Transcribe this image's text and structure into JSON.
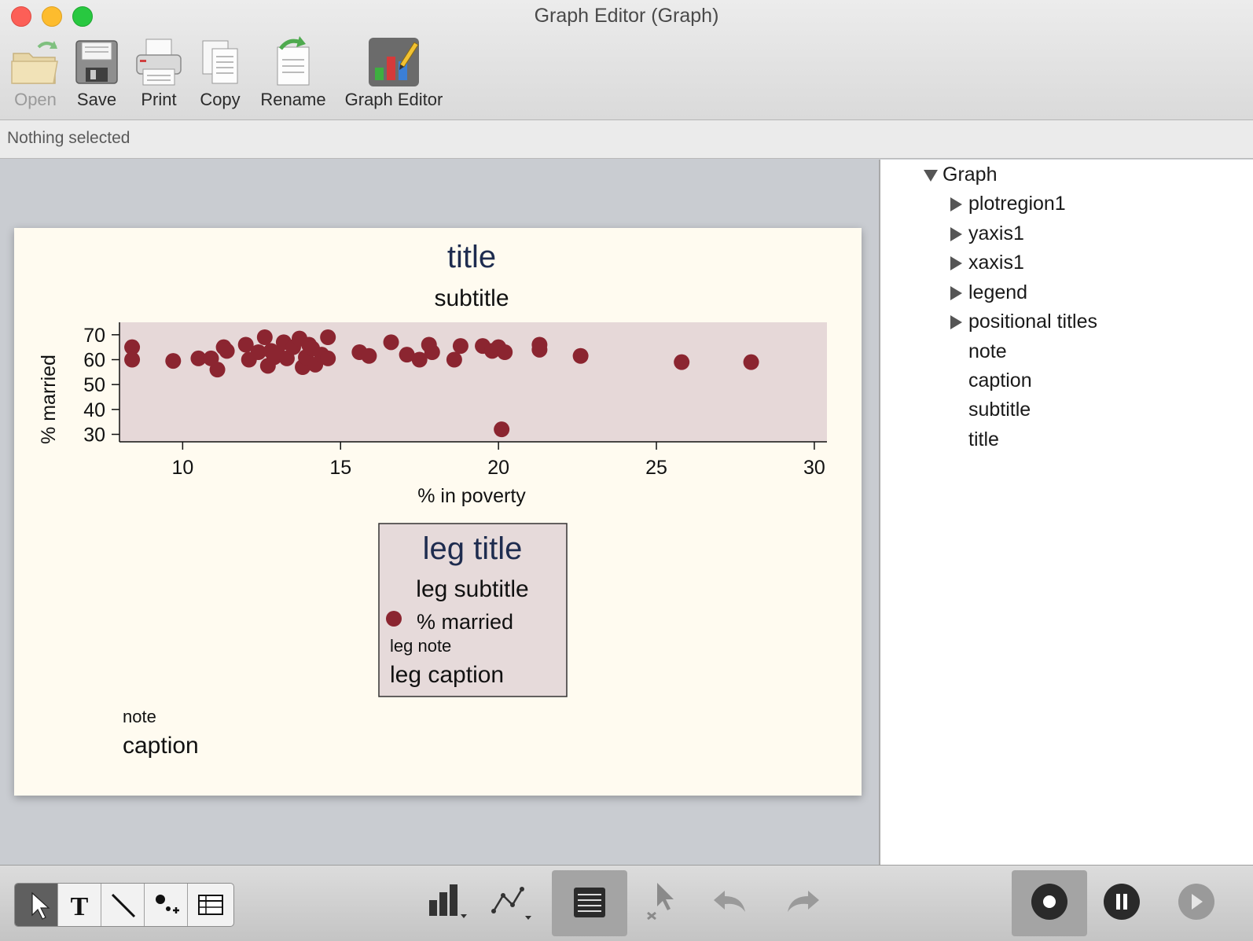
{
  "window": {
    "title": "Graph Editor (Graph)"
  },
  "toolbar": {
    "open": "Open",
    "save": "Save",
    "print": "Print",
    "copy": "Copy",
    "rename": "Rename",
    "graph_editor": "Graph Editor"
  },
  "status": {
    "text": "Nothing selected"
  },
  "tree": {
    "root": "Graph",
    "items": [
      "plotregion1",
      "yaxis1",
      "xaxis1",
      "legend",
      "positional titles",
      "note",
      "caption",
      "subtitle",
      "title"
    ]
  },
  "graph": {
    "note": "note",
    "caption": "caption",
    "legend": {
      "title": "leg title",
      "subtitle": "leg subtitle",
      "key_label": "% married",
      "note": "leg note",
      "caption": "leg caption"
    }
  },
  "chart_data": {
    "type": "scatter",
    "title": "title",
    "subtitle": "subtitle",
    "xlabel": "% in poverty",
    "ylabel": "% married",
    "xlim": [
      8,
      30.4
    ],
    "ylim": [
      27,
      75
    ],
    "xticks": [
      10,
      15,
      20,
      25,
      30
    ],
    "yticks": [
      30,
      40,
      50,
      60,
      70
    ],
    "series": [
      {
        "name": "% married",
        "color": "#8b2530",
        "points": [
          [
            8.4,
            65
          ],
          [
            8.4,
            60
          ],
          [
            9.7,
            59.5
          ],
          [
            10.5,
            60.5
          ],
          [
            10.9,
            60.5
          ],
          [
            11.1,
            56
          ],
          [
            11.3,
            65
          ],
          [
            11.4,
            63.5
          ],
          [
            12.0,
            66
          ],
          [
            12.1,
            60
          ],
          [
            12.4,
            63
          ],
          [
            12.6,
            69
          ],
          [
            12.7,
            57.5
          ],
          [
            12.8,
            63.5
          ],
          [
            12.9,
            61
          ],
          [
            13.0,
            62.5
          ],
          [
            13.2,
            67
          ],
          [
            13.3,
            60.5
          ],
          [
            13.5,
            65
          ],
          [
            13.7,
            68.5
          ],
          [
            13.8,
            57
          ],
          [
            13.9,
            61
          ],
          [
            14.0,
            66
          ],
          [
            14.1,
            64.5
          ],
          [
            14.2,
            58
          ],
          [
            14.4,
            62
          ],
          [
            14.6,
            60.5
          ],
          [
            14.6,
            69
          ],
          [
            15.6,
            63
          ],
          [
            15.9,
            61.5
          ],
          [
            16.6,
            67
          ],
          [
            17.1,
            62
          ],
          [
            17.5,
            60
          ],
          [
            17.8,
            66
          ],
          [
            17.9,
            63
          ],
          [
            18.6,
            60
          ],
          [
            18.8,
            65.5
          ],
          [
            19.5,
            65.5
          ],
          [
            19.8,
            63.5
          ],
          [
            20.0,
            65
          ],
          [
            20.2,
            63
          ],
          [
            21.3,
            66
          ],
          [
            21.3,
            64
          ],
          [
            22.6,
            61.5
          ],
          [
            25.8,
            59
          ],
          [
            28.0,
            59
          ],
          [
            20.1,
            32
          ]
        ]
      }
    ],
    "grid": false,
    "legend_position": "bottom"
  }
}
